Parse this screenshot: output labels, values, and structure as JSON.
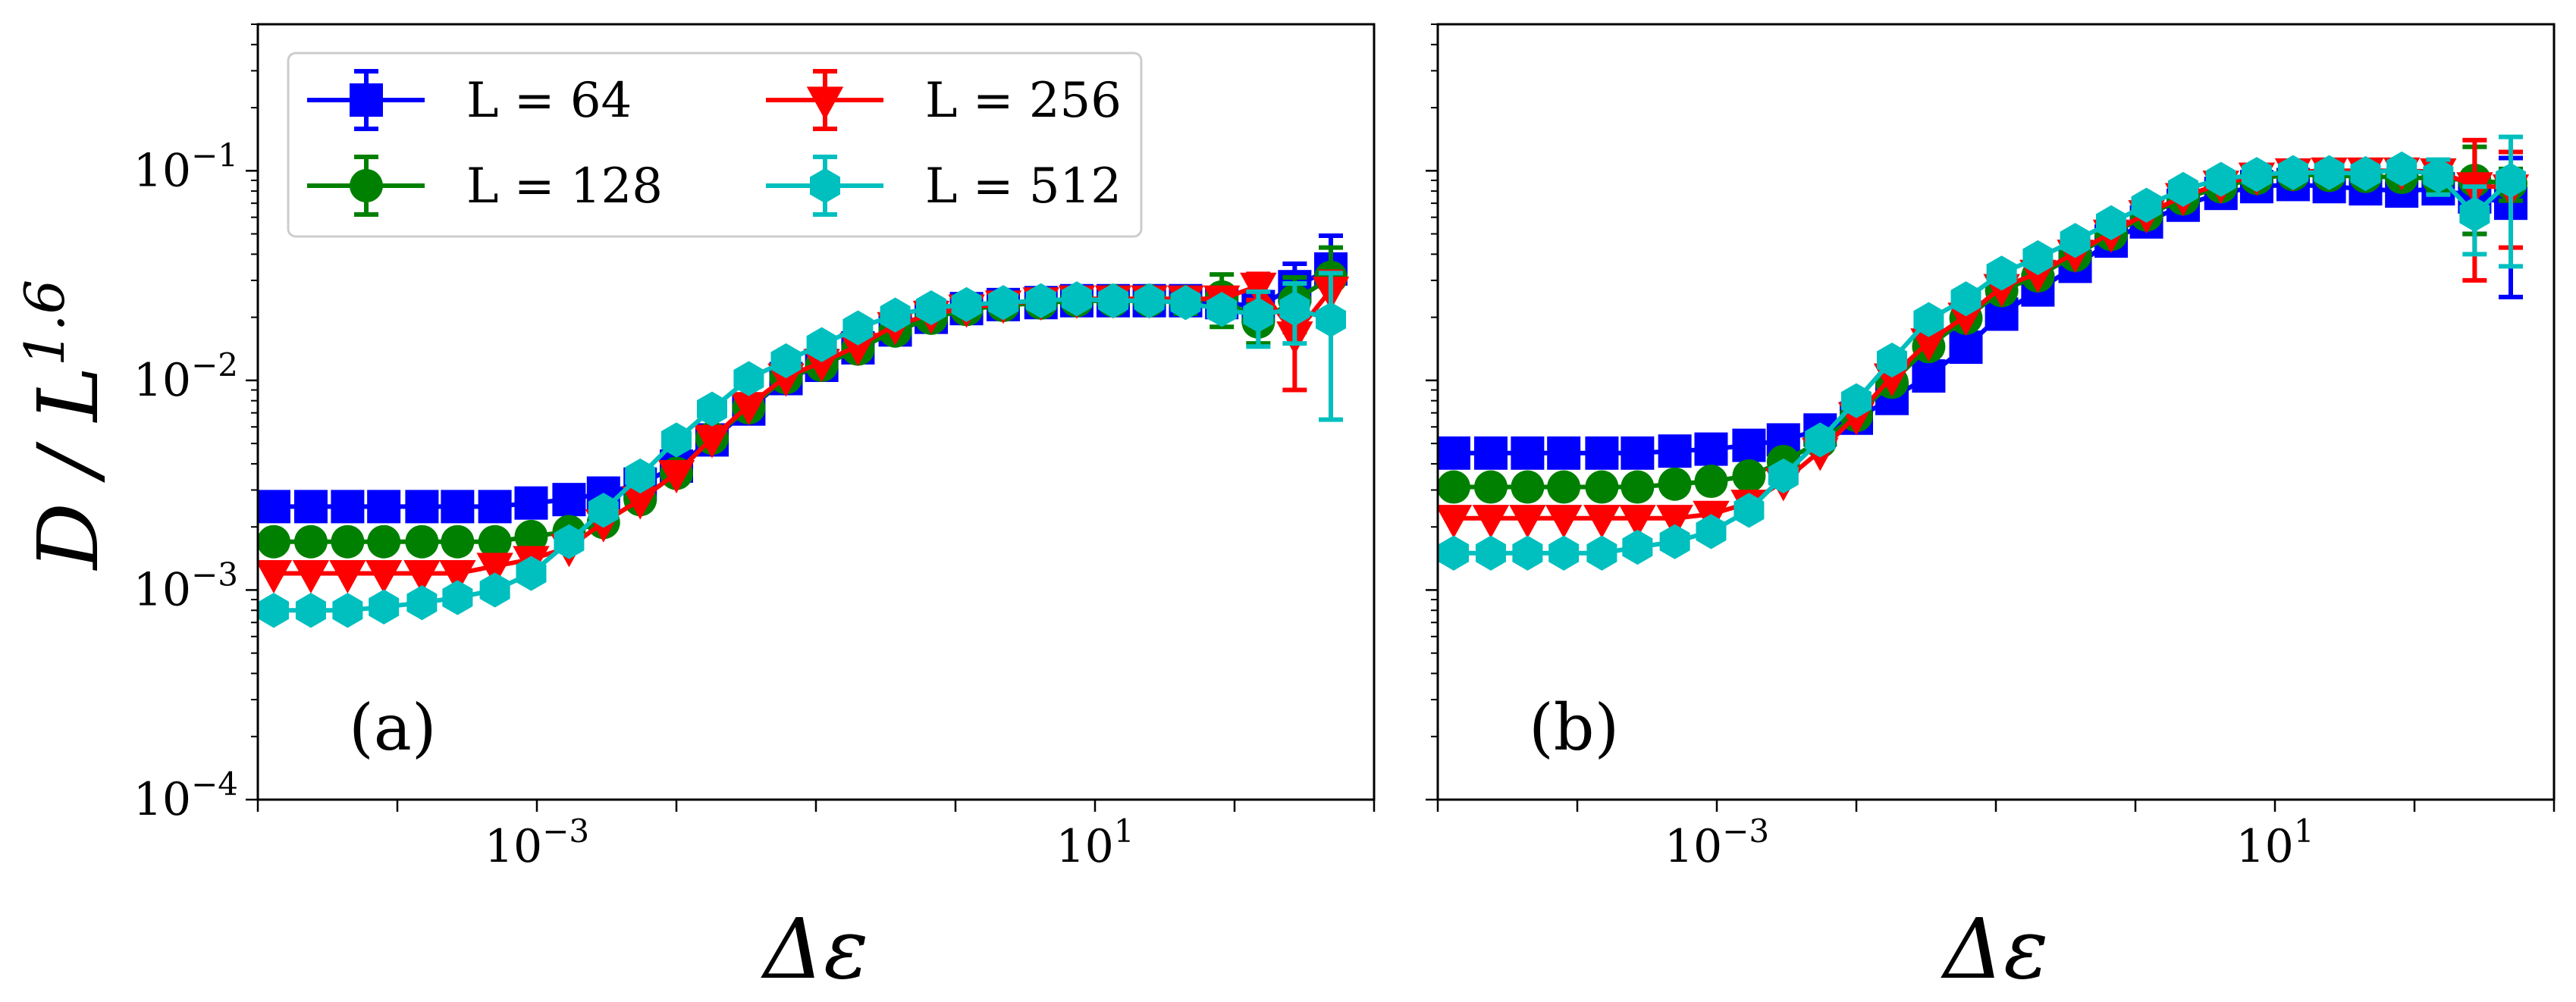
{
  "figure": {
    "ylabel": "D / L^1.6",
    "xlabel": "Δε",
    "panels": [
      "(a)",
      "(b)"
    ]
  },
  "chart_data": [
    {
      "type": "line",
      "panel": "(a)",
      "xscale": "log",
      "yscale": "log",
      "xlim": [
        1e-05,
        1000
      ],
      "ylim": [
        0.0001,
        0.5
      ],
      "xlabel": "Δε",
      "ylabel": "D / L^1.6",
      "xticks": [
        {
          "value": 0.001,
          "label": "10^-3"
        },
        {
          "value": 10,
          "label": "10^1"
        }
      ],
      "yticks": [
        {
          "value": 0.0001,
          "label": "10^-4"
        },
        {
          "value": 0.001,
          "label": "10^-3"
        },
        {
          "value": 0.01,
          "label": "10^-2"
        },
        {
          "value": 0.1,
          "label": "10^-1"
        }
      ],
      "legend_position": "top-left",
      "series": [
        {
          "name": "L = 64",
          "marker": "square",
          "color": "#0000ff",
          "x": [
            1.3e-05,
            2.4e-05,
            4.4e-05,
            8e-05,
            0.00015,
            0.00027,
            0.0005,
            0.00091,
            0.0017,
            0.003,
            0.0055,
            0.01,
            0.018,
            0.033,
            0.061,
            0.11,
            0.2,
            0.37,
            0.67,
            1.2,
            2.2,
            4.1,
            7.4,
            13.5,
            24.5,
            44.6,
            81,
            148,
            270,
            490
          ],
          "y": [
            0.0025,
            0.0025,
            0.0025,
            0.0025,
            0.0025,
            0.0025,
            0.0025,
            0.0026,
            0.0027,
            0.0029,
            0.0032,
            0.0039,
            0.0052,
            0.0073,
            0.0102,
            0.0118,
            0.0143,
            0.0174,
            0.02,
            0.022,
            0.023,
            0.0235,
            0.024,
            0.024,
            0.024,
            0.024,
            0.0235,
            0.0225,
            0.028,
            0.034
          ],
          "err": [
            0,
            0,
            0,
            0,
            0,
            0,
            0,
            0,
            0,
            0,
            0,
            0,
            0,
            0,
            0,
            0,
            0,
            0,
            0,
            0,
            0,
            0,
            0,
            0,
            0,
            0,
            0.002,
            0.003,
            0.008,
            0.015
          ]
        },
        {
          "name": "L = 128",
          "marker": "circle",
          "color": "#008000",
          "x": [
            1.3e-05,
            2.4e-05,
            4.4e-05,
            8e-05,
            0.00015,
            0.00027,
            0.0005,
            0.00091,
            0.0017,
            0.003,
            0.0055,
            0.01,
            0.018,
            0.033,
            0.061,
            0.11,
            0.2,
            0.37,
            0.67,
            1.2,
            2.2,
            4.1,
            7.4,
            13.5,
            24.5,
            44.6,
            81,
            148,
            270,
            490
          ],
          "y": [
            0.0017,
            0.0017,
            0.0017,
            0.0017,
            0.0017,
            0.0017,
            0.0017,
            0.0018,
            0.0019,
            0.0021,
            0.0027,
            0.0036,
            0.0053,
            0.0074,
            0.0103,
            0.0118,
            0.0141,
            0.0172,
            0.0198,
            0.0218,
            0.0228,
            0.0234,
            0.024,
            0.024,
            0.024,
            0.0238,
            0.025,
            0.019,
            0.024,
            0.031
          ],
          "err": [
            0,
            0,
            0,
            0,
            0,
            0,
            0,
            0,
            0,
            0,
            0,
            0,
            0,
            0,
            0,
            0,
            0,
            0,
            0,
            0,
            0,
            0,
            0,
            0,
            0,
            0.003,
            0.007,
            0.004,
            0.007,
            0.012
          ]
        },
        {
          "name": "L = 256",
          "marker": "triangle-down",
          "color": "#ff0000",
          "x": [
            1.3e-05,
            2.4e-05,
            4.4e-05,
            8e-05,
            0.00015,
            0.00027,
            0.0005,
            0.00091,
            0.0017,
            0.003,
            0.0055,
            0.01,
            0.018,
            0.033,
            0.061,
            0.11,
            0.2,
            0.37,
            0.67,
            1.2,
            2.2,
            4.1,
            7.4,
            13.5,
            24.5,
            44.6,
            81,
            148,
            270,
            490
          ],
          "y": [
            0.0012,
            0.0012,
            0.0012,
            0.0012,
            0.0012,
            0.0012,
            0.0013,
            0.0014,
            0.0016,
            0.0021,
            0.0027,
            0.0036,
            0.0053,
            0.0076,
            0.0104,
            0.0122,
            0.0146,
            0.0183,
            0.0207,
            0.0222,
            0.0232,
            0.024,
            0.0245,
            0.0245,
            0.0245,
            0.0245,
            0.0245,
            0.0282,
            0.0165,
            0.027
          ],
          "err": [
            0,
            0,
            0,
            0,
            0,
            0,
            0,
            0,
            0,
            0,
            0,
            0,
            0,
            0,
            0,
            0,
            0,
            0,
            0,
            0,
            0,
            0,
            0,
            0,
            0,
            0,
            0.003,
            0.004,
            0.0075,
            0.006
          ]
        },
        {
          "name": "L = 512",
          "marker": "hexagon",
          "color": "#00bfbf",
          "x": [
            1.3e-05,
            2.4e-05,
            4.4e-05,
            8e-05,
            0.00015,
            0.00027,
            0.0005,
            0.00091,
            0.0017,
            0.003,
            0.0055,
            0.01,
            0.018,
            0.033,
            0.061,
            0.11,
            0.2,
            0.37,
            0.67,
            1.2,
            2.2,
            4.1,
            7.4,
            13.5,
            24.5,
            44.6,
            81,
            148,
            270,
            490
          ],
          "y": [
            0.0008,
            0.0008,
            0.0008,
            0.00083,
            0.00087,
            0.00092,
            0.001,
            0.0012,
            0.0017,
            0.0024,
            0.0035,
            0.0052,
            0.0073,
            0.0102,
            0.0124,
            0.0148,
            0.0178,
            0.0205,
            0.0222,
            0.023,
            0.0235,
            0.024,
            0.0245,
            0.024,
            0.024,
            0.0235,
            0.0218,
            0.0205,
            0.022,
            0.0195
          ],
          "err": [
            0,
            0,
            0,
            0,
            0,
            0,
            0,
            0,
            0,
            0,
            0,
            0,
            0,
            0,
            0,
            0,
            0,
            0,
            0,
            0,
            0,
            0,
            0,
            0,
            0,
            0,
            0.002,
            0.006,
            0.007,
            0.013
          ]
        }
      ]
    },
    {
      "type": "line",
      "panel": "(b)",
      "xscale": "log",
      "yscale": "log",
      "xlim": [
        1e-05,
        1000
      ],
      "ylim": [
        0.0001,
        0.5
      ],
      "xlabel": "Δε",
      "ylabel": "",
      "xticks": [
        {
          "value": 0.001,
          "label": "10^-3"
        },
        {
          "value": 10,
          "label": "10^1"
        }
      ],
      "yticks": [],
      "legend_position": "none",
      "series": [
        {
          "name": "L = 64",
          "marker": "square",
          "color": "#0000ff",
          "x": [
            1.3e-05,
            2.4e-05,
            4.4e-05,
            8e-05,
            0.00015,
            0.00027,
            0.0005,
            0.00091,
            0.0017,
            0.003,
            0.0055,
            0.01,
            0.018,
            0.033,
            0.061,
            0.11,
            0.2,
            0.37,
            0.67,
            1.2,
            2.2,
            4.1,
            7.4,
            13.5,
            24.5,
            44.6,
            81,
            148,
            270,
            490
          ],
          "y": [
            0.0045,
            0.0045,
            0.0045,
            0.0045,
            0.0045,
            0.0045,
            0.0046,
            0.0047,
            0.0049,
            0.0052,
            0.0058,
            0.0066,
            0.0082,
            0.0105,
            0.0144,
            0.0207,
            0.027,
            0.035,
            0.0462,
            0.057,
            0.0685,
            0.078,
            0.084,
            0.086,
            0.084,
            0.082,
            0.08,
            0.082,
            0.075,
            0.07
          ],
          "err": [
            0,
            0,
            0,
            0,
            0,
            0,
            0,
            0,
            0,
            0,
            0,
            0,
            0,
            0,
            0,
            0,
            0,
            0,
            0,
            0,
            0,
            0,
            0,
            0,
            0,
            0,
            0.005,
            0.01,
            0.025,
            0.045
          ]
        },
        {
          "name": "L = 128",
          "marker": "circle",
          "color": "#008000",
          "x": [
            1.3e-05,
            2.4e-05,
            4.4e-05,
            8e-05,
            0.00015,
            0.00027,
            0.0005,
            0.00091,
            0.0017,
            0.003,
            0.0055,
            0.01,
            0.018,
            0.033,
            0.061,
            0.11,
            0.2,
            0.37,
            0.67,
            1.2,
            2.2,
            4.1,
            7.4,
            13.5,
            24.5,
            44.6,
            81,
            148,
            270,
            490
          ],
          "y": [
            0.0031,
            0.0031,
            0.0031,
            0.0031,
            0.0031,
            0.0031,
            0.0032,
            0.0033,
            0.0035,
            0.0041,
            0.0051,
            0.0068,
            0.0098,
            0.0145,
            0.0198,
            0.0268,
            0.0315,
            0.0395,
            0.0497,
            0.0615,
            0.0735,
            0.084,
            0.092,
            0.096,
            0.095,
            0.094,
            0.093,
            0.092,
            0.09,
            0.087
          ],
          "err": [
            0,
            0,
            0,
            0,
            0,
            0,
            0,
            0,
            0,
            0,
            0,
            0,
            0,
            0,
            0,
            0,
            0,
            0,
            0,
            0,
            0,
            0,
            0,
            0,
            0,
            0,
            0.006,
            0.012,
            0.04,
            0.015
          ]
        },
        {
          "name": "L = 256",
          "marker": "triangle-down",
          "color": "#ff0000",
          "x": [
            1.3e-05,
            2.4e-05,
            4.4e-05,
            8e-05,
            0.00015,
            0.00027,
            0.0005,
            0.00091,
            0.0017,
            0.003,
            0.0055,
            0.01,
            0.018,
            0.033,
            0.061,
            0.11,
            0.2,
            0.37,
            0.67,
            1.2,
            2.2,
            4.1,
            7.4,
            13.5,
            24.5,
            44.6,
            81,
            148,
            270,
            490
          ],
          "y": [
            0.0022,
            0.0022,
            0.0022,
            0.0022,
            0.0022,
            0.0022,
            0.0022,
            0.0023,
            0.0026,
            0.0033,
            0.0046,
            0.0068,
            0.0104,
            0.0153,
            0.0203,
            0.0278,
            0.0325,
            0.0405,
            0.0505,
            0.0625,
            0.0755,
            0.0865,
            0.0945,
            0.099,
            0.1,
            0.1,
            0.1,
            0.099,
            0.085,
            0.083
          ],
          "err": [
            0,
            0,
            0,
            0,
            0,
            0,
            0,
            0,
            0,
            0,
            0,
            0,
            0,
            0,
            0,
            0,
            0,
            0,
            0,
            0,
            0,
            0,
            0,
            0,
            0,
            0,
            0.005,
            0.01,
            0.055,
            0.04
          ]
        },
        {
          "name": "L = 512",
          "marker": "hexagon",
          "color": "#00bfbf",
          "x": [
            1.3e-05,
            2.4e-05,
            4.4e-05,
            8e-05,
            0.00015,
            0.00027,
            0.0005,
            0.00091,
            0.0017,
            0.003,
            0.0055,
            0.01,
            0.018,
            0.033,
            0.061,
            0.11,
            0.2,
            0.37,
            0.67,
            1.2,
            2.2,
            4.1,
            7.4,
            13.5,
            24.5,
            44.6,
            81,
            148,
            270,
            490
          ],
          "y": [
            0.0015,
            0.0015,
            0.0015,
            0.0015,
            0.0015,
            0.0016,
            0.0017,
            0.0019,
            0.0024,
            0.0035,
            0.0052,
            0.008,
            0.0125,
            0.0195,
            0.0245,
            0.0325,
            0.0385,
            0.0465,
            0.0565,
            0.0685,
            0.0815,
            0.091,
            0.096,
            0.098,
            0.098,
            0.097,
            0.102,
            0.095,
            0.062,
            0.09
          ],
          "err": [
            0,
            0,
            0,
            0,
            0,
            0,
            0,
            0,
            0,
            0,
            0,
            0,
            0,
            0,
            0,
            0,
            0,
            0,
            0,
            0,
            0,
            0,
            0,
            0,
            0,
            0,
            0.005,
            0.018,
            0.022,
            0.055
          ]
        }
      ]
    }
  ]
}
